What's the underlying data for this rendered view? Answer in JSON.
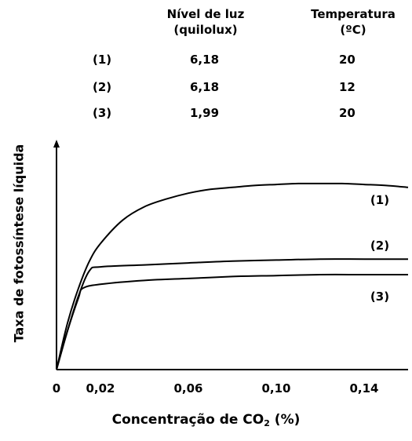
{
  "table": {
    "headers": {
      "light": [
        "Nível de luz",
        "(quilolux)"
      ],
      "temp": [
        "Temperatura",
        "(ºC)"
      ]
    },
    "rows": [
      {
        "id": "(1)",
        "light": "6,18",
        "temp": "20"
      },
      {
        "id": "(2)",
        "light": "6,18",
        "temp": "12"
      },
      {
        "id": "(3)",
        "light": "1,99",
        "temp": "20"
      }
    ]
  },
  "chart_data": {
    "type": "line",
    "ylabel": "Taxa de fotossíntese líquida",
    "xlabel_text": "Concentração de CO",
    "xlabel_sub": "2",
    "xlabel_unit": " (%)",
    "x_ticks": [
      "0",
      "0,02",
      "0,06",
      "0,10",
      "0,14"
    ],
    "x_tick_values": [
      0,
      0.02,
      0.06,
      0.1,
      0.14
    ],
    "xlim": [
      0,
      0.16
    ],
    "ylim": [
      0,
      1
    ],
    "series": [
      {
        "name": "(1)",
        "x": [
          0,
          0.005,
          0.01,
          0.015,
          0.02,
          0.03,
          0.04,
          0.05,
          0.06,
          0.07,
          0.08,
          0.09,
          0.1,
          0.11,
          0.12,
          0.13,
          0.14,
          0.15,
          0.16
        ],
        "y": [
          0.0,
          0.24,
          0.42,
          0.56,
          0.65,
          0.77,
          0.84,
          0.88,
          0.91,
          0.93,
          0.94,
          0.95,
          0.955,
          0.96,
          0.96,
          0.96,
          0.955,
          0.95,
          0.94
        ]
      },
      {
        "name": "(2)",
        "x": [
          0,
          0.005,
          0.01,
          0.015,
          0.02,
          0.04,
          0.06,
          0.08,
          0.1,
          0.12,
          0.14,
          0.16
        ],
        "y": [
          0.0,
          0.2,
          0.38,
          0.51,
          0.53,
          0.54,
          0.55,
          0.56,
          0.565,
          0.57,
          0.57,
          0.57
        ]
      },
      {
        "name": "(3)",
        "x": [
          0,
          0.005,
          0.01,
          0.012,
          0.02,
          0.04,
          0.06,
          0.08,
          0.1,
          0.12,
          0.14,
          0.16
        ],
        "y": [
          0.0,
          0.2,
          0.37,
          0.42,
          0.44,
          0.46,
          0.47,
          0.48,
          0.485,
          0.49,
          0.49,
          0.49
        ]
      }
    ]
  }
}
